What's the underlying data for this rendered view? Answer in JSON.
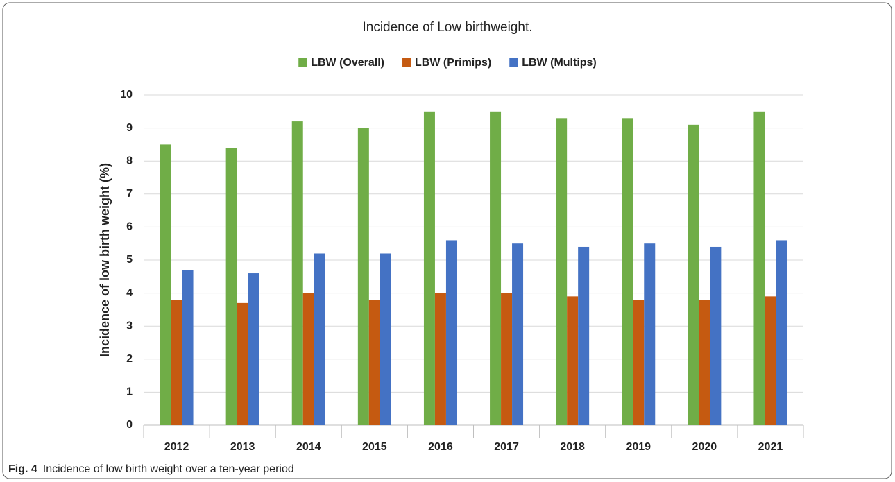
{
  "chart_data": {
    "type": "bar",
    "title": "Incidence of Low birthweight.",
    "y_label": "Incidence of low birth weight (%)",
    "categories": [
      "2012",
      "2013",
      "2014",
      "2015",
      "2016",
      "2017",
      "2018",
      "2019",
      "2020",
      "2021"
    ],
    "series": [
      {
        "name": "LBW (Overall)",
        "color": "#70ad47",
        "values": [
          8.5,
          8.4,
          9.2,
          9.0,
          9.5,
          9.5,
          9.3,
          9.3,
          9.1,
          9.5
        ]
      },
      {
        "name": "LBW (Primips)",
        "color": "#c55a11",
        "values": [
          3.8,
          3.7,
          4.0,
          3.8,
          4.0,
          4.0,
          3.9,
          3.8,
          3.8,
          3.9
        ]
      },
      {
        "name": "LBW (Multips)",
        "color": "#4472c4",
        "values": [
          4.7,
          4.6,
          5.2,
          5.2,
          5.6,
          5.5,
          5.4,
          5.5,
          5.4,
          5.6
        ]
      }
    ],
    "ylim": [
      0,
      10
    ],
    "yticks": [
      0,
      1,
      2,
      3,
      4,
      5,
      6,
      7,
      8,
      9,
      10
    ],
    "grid": true,
    "legend": "top"
  },
  "figure": {
    "label": "Fig. 4",
    "caption": "Incidence of low birth weight over a ten-year period"
  }
}
